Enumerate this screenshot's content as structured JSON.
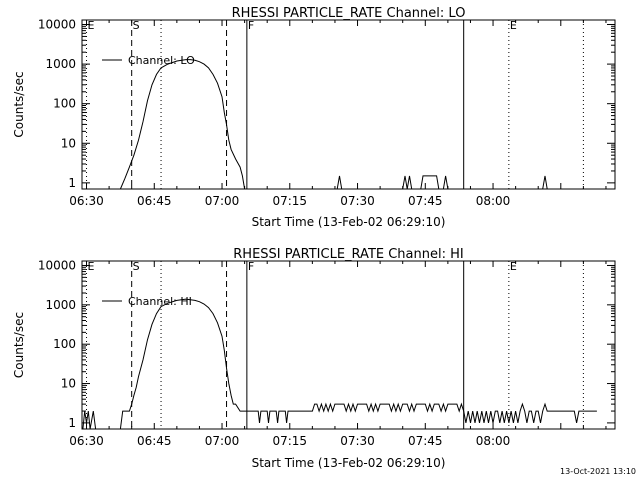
{
  "footer_timestamp": "13-Oct-2021 13:10",
  "chart_data": [
    {
      "type": "line",
      "title": "RHESSI PARTICLE_RATE Channel: LO",
      "xlabel": "Start Time (13-Feb-02 06:29:10)",
      "ylabel": "Counts/sec",
      "yscale": "log",
      "ylim": [
        0.7,
        13000
      ],
      "xlim_min_after_0630": [
        -1,
        117
      ],
      "xticks": [
        "06:30",
        "06:45",
        "07:00",
        "07:15",
        "07:30",
        "07:45",
        "08:00"
      ],
      "yticks": [
        "1",
        "10",
        "100",
        "1000",
        "10000"
      ],
      "legend": {
        "position": "top-left",
        "entries": [
          "Channel: LO"
        ]
      },
      "markers": [
        {
          "label": "E",
          "x": 0,
          "style": "dotted"
        },
        {
          "label": "S",
          "x": 10,
          "style": "dashed"
        },
        {
          "label": "",
          "x": 16.5,
          "style": "dotted"
        },
        {
          "label": "",
          "x": 31,
          "style": "dashed"
        },
        {
          "label": "F",
          "x": 35.5,
          "style": "solid"
        },
        {
          "label": "",
          "x": 83.5,
          "style": "solid"
        },
        {
          "label": "E",
          "x": 93.5,
          "style": "dotted"
        },
        {
          "label": "",
          "x": 110,
          "style": "dotted"
        }
      ],
      "series": [
        {
          "name": "Channel: LO",
          "points": [
            [
              7.5,
              0.7
            ],
            [
              8.5,
              1.3
            ],
            [
              9.5,
              2.5
            ],
            [
              10.5,
              5
            ],
            [
              11.5,
              12
            ],
            [
              12.5,
              35
            ],
            [
              13.5,
              120
            ],
            [
              14.5,
              300
            ],
            [
              15.5,
              550
            ],
            [
              16.5,
              800
            ],
            [
              18,
              1000
            ],
            [
              20,
              1200
            ],
            [
              22,
              1300
            ],
            [
              23,
              1300
            ],
            [
              24,
              1250
            ],
            [
              25,
              1150
            ],
            [
              26,
              1000
            ],
            [
              27,
              800
            ],
            [
              28,
              550
            ],
            [
              29,
              330
            ],
            [
              30,
              150
            ],
            [
              30.5,
              60
            ],
            [
              31,
              30
            ],
            [
              31.5,
              12
            ],
            [
              32,
              7
            ],
            [
              33,
              4
            ],
            [
              34,
              2.5
            ],
            [
              34.5,
              1.5
            ],
            [
              35,
              0.7
            ],
            [
              55.5,
              0.7
            ],
            [
              56,
              1.5
            ],
            [
              56.5,
              0.7
            ],
            [
              70,
              0.7
            ],
            [
              70.5,
              1.5
            ],
            [
              71,
              0.7
            ],
            [
              71.5,
              1.5
            ],
            [
              72,
              0.7
            ],
            [
              74,
              0.7
            ],
            [
              74.5,
              1.5
            ],
            [
              77.5,
              1.5
            ],
            [
              78,
              0.7
            ],
            [
              79,
              0.7
            ],
            [
              79.5,
              1.5
            ],
            [
              80,
              0.7
            ],
            [
              101,
              0.7
            ],
            [
              101.5,
              1.5
            ],
            [
              102,
              0.7
            ]
          ]
        }
      ]
    },
    {
      "type": "line",
      "title": "RHESSI PARTICLE_RATE Channel: HI",
      "xlabel": "Start Time (13-Feb-02 06:29:10)",
      "ylabel": "Counts/sec",
      "yscale": "log",
      "ylim": [
        0.7,
        13000
      ],
      "xlim_min_after_0630": [
        -1,
        117
      ],
      "xticks": [
        "06:30",
        "06:45",
        "07:00",
        "07:15",
        "07:30",
        "07:45",
        "08:00"
      ],
      "yticks": [
        "1",
        "10",
        "100",
        "1000",
        "10000"
      ],
      "legend": {
        "position": "top-left",
        "entries": [
          "Channel: HI"
        ]
      },
      "markers": [
        {
          "label": "E",
          "x": 0,
          "style": "dotted"
        },
        {
          "label": "S",
          "x": 10,
          "style": "dashed"
        },
        {
          "label": "",
          "x": 16.5,
          "style": "dotted"
        },
        {
          "label": "",
          "x": 31,
          "style": "dashed"
        },
        {
          "label": "F",
          "x": 35.5,
          "style": "solid"
        },
        {
          "label": "",
          "x": 83.5,
          "style": "solid"
        },
        {
          "label": "E",
          "x": 93.5,
          "style": "dotted"
        },
        {
          "label": "",
          "x": 110,
          "style": "dotted"
        }
      ],
      "series": [
        {
          "name": "Channel: HI",
          "points": [
            [
              -0.8,
              0.7
            ],
            [
              -0.4,
              2
            ],
            [
              0,
              1
            ],
            [
              0.4,
              2
            ],
            [
              0.8,
              0.7
            ],
            [
              1.5,
              2
            ],
            [
              2,
              0.7
            ],
            [
              7.5,
              0.7
            ],
            [
              8,
              2
            ],
            [
              9,
              2
            ],
            [
              9.5,
              2
            ],
            [
              10,
              3
            ],
            [
              10.5,
              5
            ],
            [
              11,
              8
            ],
            [
              11.5,
              15
            ],
            [
              12.5,
              40
            ],
            [
              13.5,
              130
            ],
            [
              14.5,
              320
            ],
            [
              15.5,
              600
            ],
            [
              16.5,
              900
            ],
            [
              18,
              1100
            ],
            [
              20,
              1300
            ],
            [
              22,
              1400
            ],
            [
              23,
              1350
            ],
            [
              24,
              1300
            ],
            [
              25,
              1200
            ],
            [
              26,
              1050
            ],
            [
              27,
              850
            ],
            [
              28,
              600
            ],
            [
              29,
              350
            ],
            [
              30,
              160
            ],
            [
              30.5,
              70
            ],
            [
              31,
              25
            ],
            [
              31.5,
              10
            ],
            [
              32,
              5
            ],
            [
              32.5,
              3
            ],
            [
              33,
              3
            ],
            [
              34,
              2
            ],
            [
              35,
              2
            ],
            [
              36,
              2
            ],
            [
              38,
              2
            ],
            [
              38.3,
              1
            ],
            [
              38.6,
              2
            ],
            [
              40,
              2
            ],
            [
              40.3,
              1
            ],
            [
              40.6,
              2
            ],
            [
              42,
              2
            ],
            [
              42.3,
              1
            ],
            [
              42.6,
              2
            ],
            [
              44,
              2
            ],
            [
              44.3,
              1
            ],
            [
              44.6,
              2
            ],
            [
              50,
              2
            ],
            [
              50.5,
              3
            ],
            [
              51,
              3
            ],
            [
              51.5,
              2
            ],
            [
              52,
              3
            ],
            [
              52.5,
              2
            ],
            [
              53,
              3
            ],
            [
              53.5,
              2
            ],
            [
              54,
              3
            ],
            [
              54.5,
              2
            ],
            [
              55,
              3
            ],
            [
              57,
              3
            ],
            [
              57.5,
              2
            ],
            [
              58,
              3
            ],
            [
              58.5,
              2
            ],
            [
              59,
              3
            ],
            [
              59.5,
              2
            ],
            [
              60,
              3
            ],
            [
              62,
              3
            ],
            [
              62.5,
              2
            ],
            [
              63,
              3
            ],
            [
              63.5,
              2
            ],
            [
              64,
              3
            ],
            [
              64.5,
              2
            ],
            [
              65,
              3
            ],
            [
              67,
              3
            ],
            [
              67.5,
              2
            ],
            [
              68,
              3
            ],
            [
              68.5,
              2
            ],
            [
              69,
              3
            ],
            [
              69.5,
              2
            ],
            [
              70,
              3
            ],
            [
              71,
              3
            ],
            [
              71.5,
              2
            ],
            [
              72,
              3
            ],
            [
              72.5,
              2
            ],
            [
              73,
              3
            ],
            [
              75,
              3
            ],
            [
              75.5,
              2
            ],
            [
              76,
              3
            ],
            [
              76.5,
              2
            ],
            [
              77,
              3
            ],
            [
              78,
              3
            ],
            [
              78.5,
              2
            ],
            [
              79,
              3
            ],
            [
              79.5,
              2
            ],
            [
              80,
              3
            ],
            [
              82,
              3
            ],
            [
              82.5,
              2
            ],
            [
              83,
              3
            ],
            [
              83.5,
              2
            ],
            [
              84,
              1
            ],
            [
              84.5,
              2
            ],
            [
              85,
              1
            ],
            [
              85.5,
              2
            ],
            [
              86,
              1
            ],
            [
              86.5,
              2
            ],
            [
              87,
              1
            ],
            [
              87.5,
              2
            ],
            [
              88,
              1
            ],
            [
              88.5,
              2
            ],
            [
              89,
              1
            ],
            [
              89.5,
              2
            ],
            [
              90,
              1
            ],
            [
              90.5,
              2
            ],
            [
              91,
              2
            ],
            [
              91.5,
              1
            ],
            [
              92,
              2
            ],
            [
              92.5,
              1
            ],
            [
              93,
              2
            ],
            [
              93.5,
              1
            ],
            [
              94,
              2
            ],
            [
              94.5,
              1
            ],
            [
              95,
              2
            ],
            [
              95.5,
              1
            ],
            [
              96,
              2
            ],
            [
              96.5,
              3
            ],
            [
              97,
              2
            ],
            [
              97.5,
              1
            ],
            [
              98,
              2
            ],
            [
              98.5,
              2
            ],
            [
              99,
              1
            ],
            [
              99.5,
              2
            ],
            [
              100,
              2
            ],
            [
              100.5,
              1
            ],
            [
              101,
              2
            ],
            [
              101.5,
              3
            ],
            [
              102,
              2
            ],
            [
              103,
              2
            ],
            [
              108,
              2
            ],
            [
              108.5,
              1
            ],
            [
              109,
              2
            ],
            [
              111,
              2
            ],
            [
              113,
              2
            ]
          ]
        }
      ]
    }
  ]
}
